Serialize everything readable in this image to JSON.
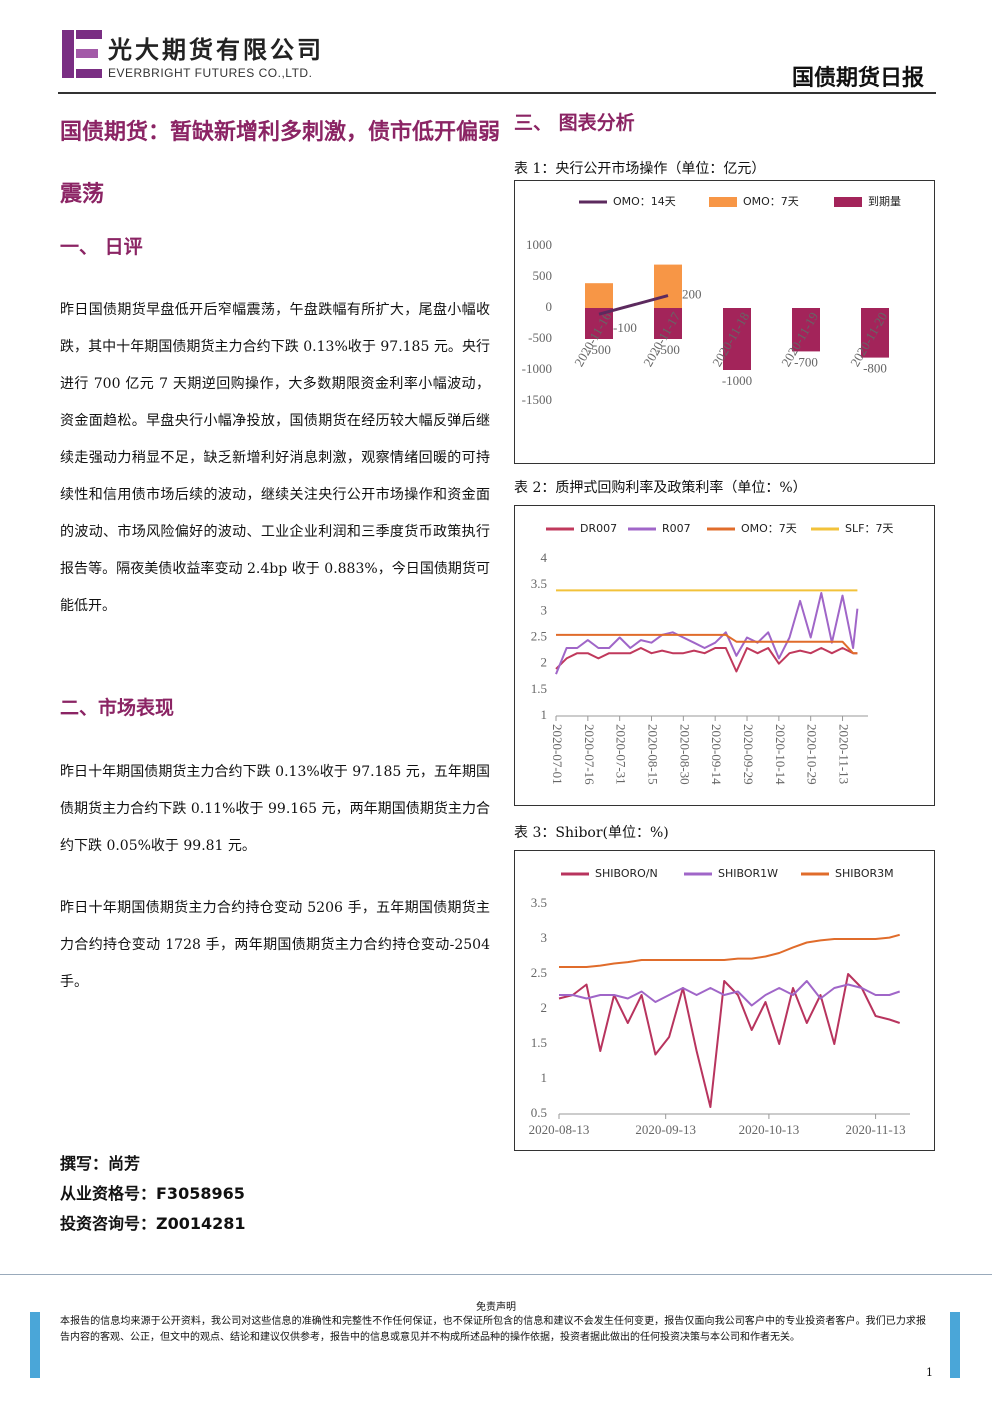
{
  "header": {
    "company_cn": "光大期货有限公司",
    "company_en": "EVERBRIGHT FUTURES CO.,LTD.",
    "report_type": "国债期货日报"
  },
  "article": {
    "title": "国债期货：暂缺新增利多刺激，债市低开偏弱震荡",
    "sections": [
      {
        "heading": "一、 日评",
        "paragraphs": [
          "昨日国债期货早盘低开后窄幅震荡，午盘跌幅有所扩大，尾盘小幅收跌，其中十年期国债期货主力合约下跌 0.13%收于 97.185 元。央行进行 700 亿元 7 天期逆回购操作，大多数期限资金利率小幅波动，资金面趋松。早盘央行小幅净投放，国债期货在经历较大幅反弹后继续走强动力稍显不足，缺乏新增利好消息刺激，观察情绪回暖的可持续性和信用债市场后续的波动，继续关注央行公开市场操作和资金面的波动、市场风险偏好的波动、工业企业利润和三季度货币政策执行报告等。隔夜美债收益率变动 2.4bp 收于 0.883%，今日国债期货可能低开。"
        ]
      },
      {
        "heading": "二、市场表现",
        "paragraphs": [
          "昨日十年期国债期货主力合约下跌 0.13%收于 97.185 元，五年期国债期货主力合约下跌 0.11%收于 99.165 元，两年期国债期货主力合约下跌 0.05%收于 99.81 元。",
          "昨日十年期国债期货主力合约持仓变动 5206 手，五年期国债期货主力合约持仓变动 1728 手，两年期国债期货主力合约持仓变动-2504 手。"
        ]
      }
    ],
    "authors": [
      "撰写：尚芳",
      "从业资格号：F3058965",
      "投资咨询号：Z0014281"
    ]
  },
  "charts_heading": "三、 图表分析",
  "charts": [
    {
      "type": "bar",
      "title": "表 1：央行公开市场操作（单位：亿元）",
      "categories": [
        "2020-11-16",
        "2020-11-17",
        "2020-11-18",
        "2020-11-19",
        "2020-11-20"
      ],
      "series": [
        {
          "name": "OMO：14天",
          "color": "#5c2a5e",
          "type": "line",
          "show_labels": true,
          "values": [
            -100,
            200,
            null,
            null,
            null
          ]
        },
        {
          "name": "OMO：7天",
          "color": "#f79646",
          "show_labels": false,
          "values": [
            400,
            700,
            null,
            null,
            null
          ]
        },
        {
          "name": "到期量",
          "color": "#a3245a",
          "show_labels": true,
          "values": [
            -500,
            -500,
            -1000,
            -700,
            -800
          ]
        }
      ],
      "ylim": [
        -1500,
        1000
      ],
      "yticks": [
        -1500,
        -1000,
        -500,
        0,
        500,
        1000
      ]
    },
    {
      "type": "line",
      "title": "表 2：质押式回购利率及政策利率（单位：%）",
      "x": [
        "2020-07-01",
        "2020-07-06",
        "2020-07-11",
        "2020-07-16",
        "2020-07-21",
        "2020-07-26",
        "2020-07-31",
        "2020-08-05",
        "2020-08-10",
        "2020-08-15",
        "2020-08-20",
        "2020-08-25",
        "2020-08-30",
        "2020-09-04",
        "2020-09-09",
        "2020-09-14",
        "2020-09-19",
        "2020-09-24",
        "2020-09-29",
        "2020-10-04",
        "2020-10-09",
        "2020-10-14",
        "2020-10-19",
        "2020-10-24",
        "2020-10-29",
        "2020-11-03",
        "2020-11-08",
        "2020-11-13",
        "2020-11-18",
        "2020-11-20"
      ],
      "series": [
        {
          "name": "DR007",
          "color": "#c0395c",
          "values": [
            1.9,
            2.1,
            2.2,
            2.2,
            2.1,
            2.2,
            2.2,
            2.2,
            2.3,
            2.2,
            2.25,
            2.2,
            2.2,
            2.25,
            2.2,
            2.3,
            2.3,
            1.85,
            2.3,
            2.2,
            2.3,
            2.0,
            2.2,
            2.25,
            2.2,
            2.3,
            2.2,
            2.3,
            2.2,
            2.2
          ]
        },
        {
          "name": "R007",
          "color": "#a066c8",
          "values": [
            1.8,
            2.3,
            2.3,
            2.45,
            2.3,
            2.3,
            2.5,
            2.3,
            2.45,
            2.4,
            2.55,
            2.6,
            2.5,
            2.4,
            2.3,
            2.4,
            2.6,
            2.15,
            2.5,
            2.4,
            2.6,
            2.1,
            2.5,
            3.2,
            2.5,
            3.35,
            2.4,
            3.3,
            2.3,
            3.05
          ]
        },
        {
          "name": "OMO：7天",
          "color": "#e06c2b",
          "values": [
            2.55,
            2.55,
            2.55,
            2.55,
            2.55,
            2.55,
            2.55,
            2.55,
            2.55,
            2.55,
            2.55,
            2.55,
            2.55,
            2.55,
            2.55,
            2.55,
            2.55,
            2.42,
            2.42,
            2.42,
            2.42,
            2.42,
            2.42,
            2.42,
            2.42,
            2.42,
            2.42,
            2.42,
            2.2,
            2.2
          ]
        },
        {
          "name": "SLF：7天",
          "color": "#f2c23a",
          "values": [
            3.4,
            3.4,
            3.4,
            3.4,
            3.4,
            3.4,
            3.4,
            3.4,
            3.4,
            3.4,
            3.4,
            3.4,
            3.4,
            3.4,
            3.4,
            3.4,
            3.4,
            3.4,
            3.4,
            3.4,
            3.4,
            3.4,
            3.4,
            3.4,
            3.4,
            3.4,
            3.4,
            3.4,
            3.4,
            3.4
          ]
        }
      ],
      "xlim": [
        "2020-07-01",
        "2020-11-25"
      ],
      "xticks": [
        "2020-07-01",
        "2020-07-16",
        "2020-07-31",
        "2020-08-15",
        "2020-08-30",
        "2020-09-14",
        "2020-09-29",
        "2020-10-14",
        "2020-10-29",
        "2020-11-13"
      ],
      "ylim": [
        1,
        4
      ],
      "yticks": [
        1,
        1.5,
        2,
        2.5,
        3,
        3.5,
        4
      ]
    },
    {
      "type": "line",
      "title": "表 3：Shibor(单位：%)",
      "x": [
        "2020-08-13",
        "2020-08-17",
        "2020-08-21",
        "2020-08-25",
        "2020-08-29",
        "2020-09-02",
        "2020-09-06",
        "2020-09-10",
        "2020-09-14",
        "2020-09-18",
        "2020-09-22",
        "2020-09-26",
        "2020-09-30",
        "2020-10-04",
        "2020-10-08",
        "2020-10-12",
        "2020-10-16",
        "2020-10-20",
        "2020-10-24",
        "2020-10-28",
        "2020-11-01",
        "2020-11-05",
        "2020-11-09",
        "2020-11-13",
        "2020-11-17",
        "2020-11-20"
      ],
      "series": [
        {
          "name": "SHIBORO/N",
          "color": "#b8345e",
          "values": [
            2.15,
            2.2,
            2.35,
            1.4,
            2.2,
            1.8,
            2.2,
            1.35,
            1.6,
            2.3,
            1.4,
            0.6,
            2.4,
            2.2,
            1.7,
            2.1,
            1.5,
            2.3,
            1.8,
            2.2,
            1.5,
            2.5,
            2.3,
            1.9,
            1.85,
            1.8
          ]
        },
        {
          "name": "SHIBOR1W",
          "color": "#a066c8",
          "values": [
            2.2,
            2.2,
            2.15,
            2.2,
            2.2,
            2.15,
            2.25,
            2.1,
            2.2,
            2.3,
            2.2,
            2.3,
            2.2,
            2.25,
            2.05,
            2.2,
            2.3,
            2.2,
            2.4,
            2.15,
            2.3,
            2.35,
            2.3,
            2.2,
            2.2,
            2.25
          ]
        },
        {
          "name": "SHIBOR3M",
          "color": "#e06c2b",
          "values": [
            2.6,
            2.6,
            2.6,
            2.62,
            2.65,
            2.67,
            2.7,
            2.7,
            2.7,
            2.7,
            2.7,
            2.7,
            2.7,
            2.72,
            2.72,
            2.75,
            2.8,
            2.88,
            2.95,
            2.98,
            3.0,
            3.0,
            3.0,
            3.0,
            3.02,
            3.06
          ]
        }
      ],
      "xlim": [
        "2020-08-13",
        "2020-11-23"
      ],
      "xticks": [
        "2020-08-13",
        "2020-09-13",
        "2020-10-13",
        "2020-11-13"
      ],
      "ylim": [
        0.5,
        3.5
      ],
      "yticks": [
        0.5,
        1,
        1.5,
        2,
        2.5,
        3,
        3.5
      ]
    }
  ],
  "footer": {
    "disclaimer_title": "免责声明",
    "disclaimer": "本报告的信息均来源于公开资料，我公司对这些信息的准确性和完整性不作任何保证，也不保证所包含的信息和建议不会发生任何变更，报告仅面向我公司客户中的专业投资者客户。我们已力求报告内容的客观、公正，但文中的观点、结论和建议仅供参考，报告中的信息或意见并不构成所述品种的操作依据，投资者据此做出的任何投资决策与本公司和作者无关。",
    "page": "1"
  }
}
